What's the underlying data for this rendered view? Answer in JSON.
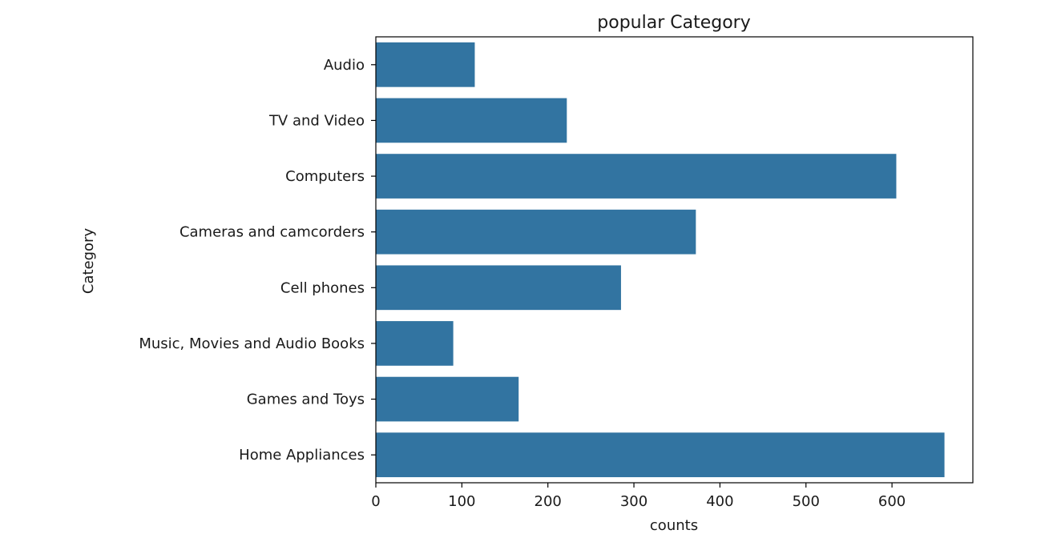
{
  "chart_data": {
    "type": "bar",
    "orientation": "horizontal",
    "title": "popular Category",
    "xlabel": "counts",
    "ylabel": "Category",
    "categories": [
      "Audio",
      "TV and Video",
      "Computers",
      "Cameras and camcorders",
      "Cell phones",
      "Music, Movies and Audio Books",
      "Games and Toys",
      "Home Appliances"
    ],
    "values": [
      115,
      222,
      605,
      372,
      285,
      90,
      166,
      661
    ],
    "xlim": [
      0,
      694
    ],
    "xticks": [
      0,
      100,
      200,
      300,
      400,
      500,
      600
    ],
    "grid": false,
    "bar_color": "#3274a1"
  }
}
